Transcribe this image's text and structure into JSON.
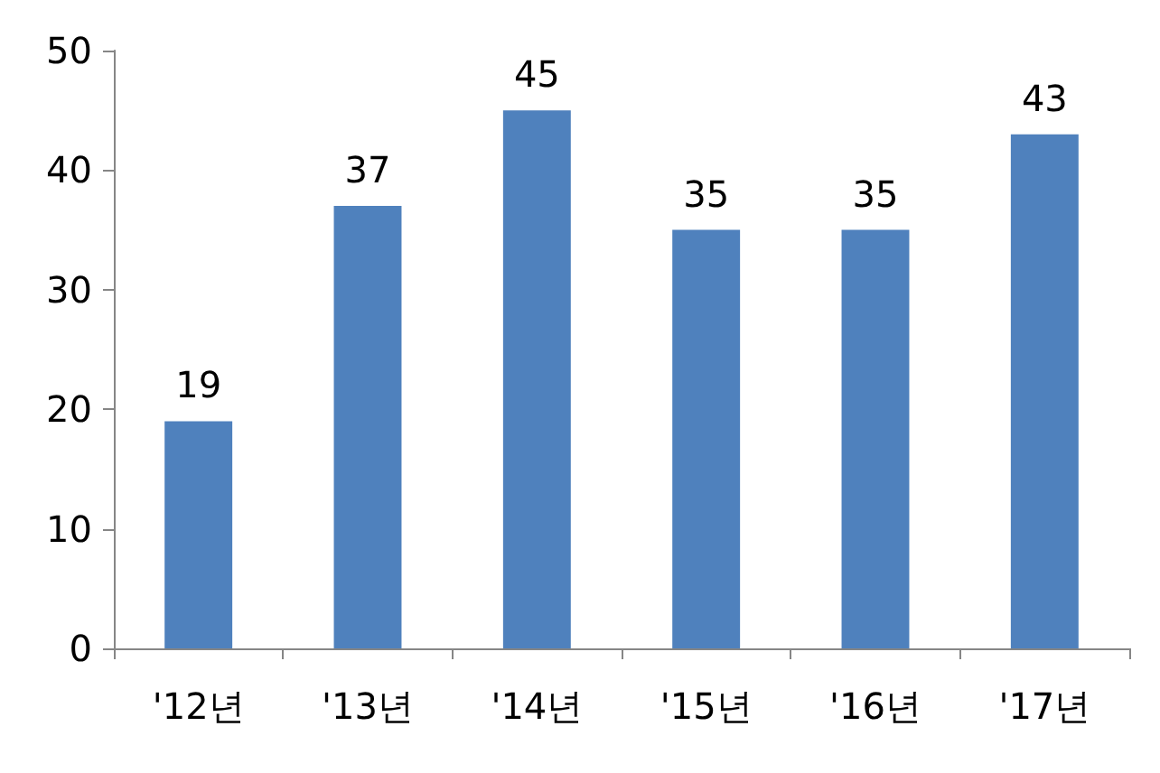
{
  "chart_data": {
    "type": "bar",
    "categories": [
      "'12년",
      "'13년",
      "'14년",
      "'15년",
      "'16년",
      "'17년"
    ],
    "values": [
      19,
      37,
      45,
      35,
      35,
      43
    ],
    "color": "#4f81bd",
    "ylim": [
      0,
      50
    ],
    "yticks": [
      0,
      10,
      20,
      30,
      40,
      50
    ],
    "grid": false,
    "data_labels": true
  }
}
